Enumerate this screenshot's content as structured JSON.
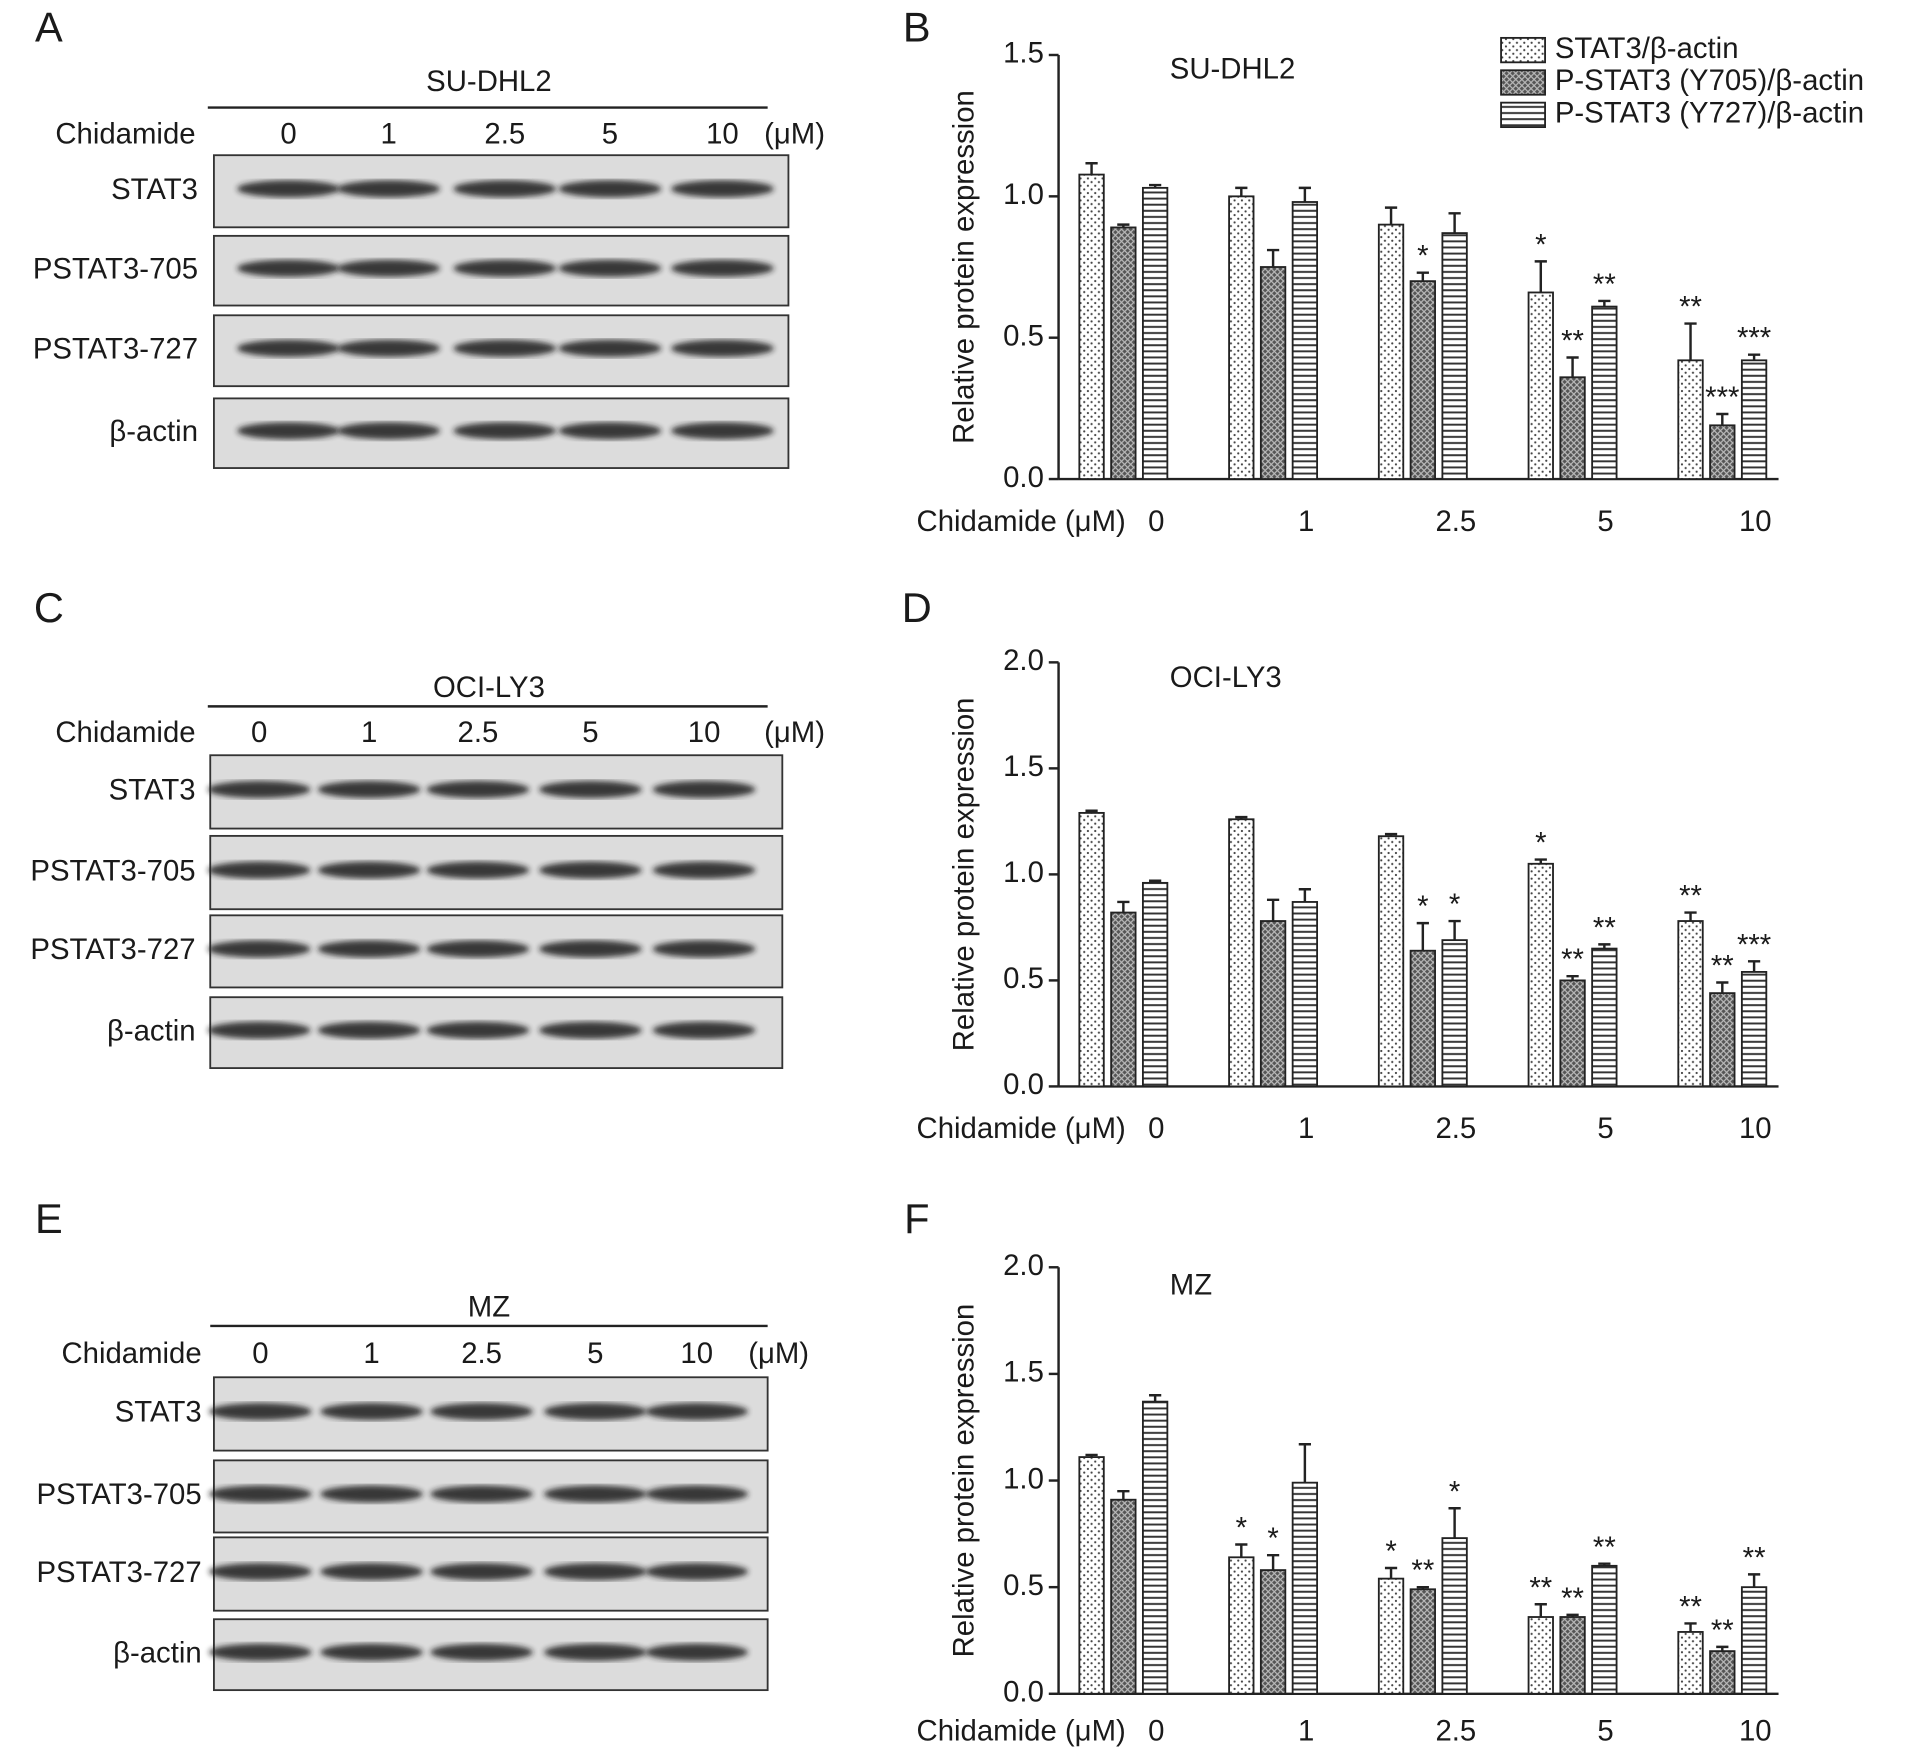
{
  "blots": [
    {
      "panel": "A",
      "title": "SU-DHL2",
      "treatment_label": "Chidamide",
      "doses": [
        "0",
        "1",
        "2.5",
        "5",
        "10"
      ],
      "unit": "(μM)",
      "rows": [
        "STAT3",
        "PSTAT3-705",
        "PSTAT3-727",
        "β-actin"
      ]
    },
    {
      "panel": "C",
      "title": "OCI-LY3",
      "treatment_label": "Chidamide",
      "doses": [
        "0",
        "1",
        "2.5",
        "5",
        "10"
      ],
      "unit": "(μM)",
      "rows": [
        "STAT3",
        "PSTAT3-705",
        "PSTAT3-727",
        "β-actin"
      ]
    },
    {
      "panel": "E",
      "title": "MZ",
      "treatment_label": "Chidamide",
      "doses": [
        "0",
        "1",
        "2.5",
        "5",
        "10"
      ],
      "unit": "(μM)",
      "rows": [
        "STAT3",
        "PSTAT3-705",
        "PSTAT3-727",
        "β-actin"
      ]
    }
  ],
  "chart_data": [
    {
      "type": "bar",
      "panel": "B",
      "title": "SU-DHL2",
      "x_label": "Chidamide (μM)",
      "y_label": "Relative protein expression",
      "categories": [
        "0",
        "1",
        "2.5",
        "5",
        "10"
      ],
      "ylim": [
        0,
        1.5
      ],
      "yticks": [
        {
          "value": 0,
          "label": "0.0"
        },
        {
          "value": 0.5,
          "label": "0.5"
        },
        {
          "value": 1,
          "label": "1.0"
        },
        {
          "value": 1.5,
          "label": "1.5"
        }
      ],
      "legend": "upper right",
      "series": [
        {
          "name": "STAT3/β-actin",
          "pattern": "dots",
          "values": [
            1.077,
            1.0,
            0.9,
            0.66,
            0.42
          ],
          "errors": [
            0.04,
            0.03,
            0.06,
            0.11,
            0.13
          ],
          "stars": [
            null,
            null,
            null,
            "*",
            "**"
          ]
        },
        {
          "name": "P-STAT3 (Y705)/β-actin",
          "pattern": "crosshatch",
          "values": [
            0.89,
            0.75,
            0.7,
            0.36,
            0.19
          ],
          "errors": [
            0.01,
            0.06,
            0.03,
            0.07,
            0.04
          ],
          "stars": [
            null,
            null,
            "*",
            "**",
            "***"
          ]
        },
        {
          "name": "P-STAT3 (Y727)/β-actin",
          "pattern": "stripes",
          "values": [
            1.03,
            0.98,
            0.87,
            0.61,
            0.42
          ],
          "errors": [
            0.01,
            0.05,
            0.07,
            0.02,
            0.02
          ],
          "stars": [
            null,
            null,
            null,
            "**",
            "***"
          ]
        }
      ]
    },
    {
      "type": "bar",
      "panel": "D",
      "title": "OCI-LY3",
      "x_label": "Chidamide (μM)",
      "y_label": "Relative protein expression",
      "categories": [
        "0",
        "1",
        "2.5",
        "5",
        "10"
      ],
      "ylim": [
        0,
        2.0
      ],
      "yticks": [
        {
          "value": 0,
          "label": "0.0"
        },
        {
          "value": 0.5,
          "label": "0.5"
        },
        {
          "value": 1,
          "label": "1.0"
        },
        {
          "value": 1.5,
          "label": "1.5"
        },
        {
          "value": 2,
          "label": "2.0"
        }
      ],
      "series": [
        {
          "pattern": "dots",
          "values": [
            1.29,
            1.26,
            1.18,
            1.05,
            0.78
          ],
          "errors": [
            0.01,
            0.01,
            0.01,
            0.02,
            0.04
          ],
          "stars": [
            null,
            null,
            null,
            "*",
            "**"
          ]
        },
        {
          "pattern": "crosshatch",
          "values": [
            0.82,
            0.78,
            0.64,
            0.5,
            0.44
          ],
          "errors": [
            0.05,
            0.1,
            0.13,
            0.02,
            0.05
          ],
          "stars": [
            null,
            null,
            "*",
            "**",
            "**"
          ]
        },
        {
          "pattern": "stripes",
          "values": [
            0.96,
            0.87,
            0.69,
            0.65,
            0.54
          ],
          "errors": [
            0.01,
            0.06,
            0.09,
            0.02,
            0.05
          ],
          "stars": [
            null,
            null,
            "*",
            "**",
            "***"
          ]
        }
      ]
    },
    {
      "type": "bar",
      "panel": "F",
      "title": "MZ",
      "x_label": "Chidamide (μM)",
      "y_label": "Relative protein expression",
      "categories": [
        "0",
        "1",
        "2.5",
        "5",
        "10"
      ],
      "ylim": [
        0,
        2.0
      ],
      "yticks": [
        {
          "value": 0,
          "label": "0.0"
        },
        {
          "value": 0.5,
          "label": "0.5"
        },
        {
          "value": 1,
          "label": "1.0"
        },
        {
          "value": 1.5,
          "label": "1.5"
        },
        {
          "value": 2,
          "label": "2.0"
        }
      ],
      "series": [
        {
          "pattern": "dots",
          "values": [
            1.11,
            0.64,
            0.54,
            0.36,
            0.29
          ],
          "errors": [
            0.01,
            0.06,
            0.05,
            0.06,
            0.04
          ],
          "stars": [
            null,
            "*",
            "*",
            "**",
            "**"
          ]
        },
        {
          "pattern": "crosshatch",
          "values": [
            0.91,
            0.58,
            0.49,
            0.36,
            0.2
          ],
          "errors": [
            0.04,
            0.07,
            0.01,
            0.01,
            0.02
          ],
          "stars": [
            null,
            "*",
            "**",
            "**",
            "**"
          ]
        },
        {
          "pattern": "stripes",
          "values": [
            1.37,
            0.99,
            0.73,
            0.6,
            0.5
          ],
          "errors": [
            0.03,
            0.18,
            0.14,
            0.01,
            0.06
          ],
          "stars": [
            null,
            null,
            "*",
            "**",
            "**"
          ]
        }
      ]
    }
  ]
}
